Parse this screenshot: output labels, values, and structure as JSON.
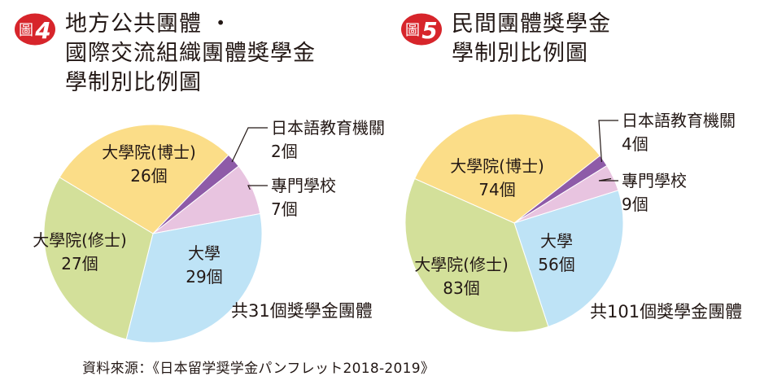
{
  "chart_data": [
    {
      "type": "pie",
      "badge_number": "4",
      "title_lines": [
        "地方公共團體 ・",
        "國際交流組織團體獎學金",
        "學制別比例圖"
      ],
      "total_label": "共31個獎學金團體",
      "slices": [
        {
          "label": "大學院(博士)",
          "count": "26個",
          "value": 26,
          "color": "#FBDD88"
        },
        {
          "label": "日本語教育機關",
          "count": "2個",
          "value": 2,
          "color": "#8E5BA8"
        },
        {
          "label": "專門學校",
          "count": "7個",
          "value": 7,
          "color": "#E8C4E0"
        },
        {
          "label": "大學",
          "count": "29個",
          "value": 29,
          "color": "#BEE3F6"
        },
        {
          "label": "大學院(修士)",
          "count": "27個",
          "value": 27,
          "color": "#D3E09A"
        }
      ]
    },
    {
      "type": "pie",
      "badge_number": "5",
      "title_lines": [
        "民間團體獎學金",
        "學制別比例圖"
      ],
      "total_label": "共101個獎學金團體",
      "slices": [
        {
          "label": "大學院(博士)",
          "count": "74個",
          "value": 74,
          "color": "#FBDD88"
        },
        {
          "label": "日本語教育機關",
          "count": "4個",
          "value": 4,
          "color": "#8E5BA8"
        },
        {
          "label": "專門學校",
          "count": "9個",
          "value": 9,
          "color": "#E8C4E0"
        },
        {
          "label": "大學",
          "count": "56個",
          "value": 56,
          "color": "#BEE3F6"
        },
        {
          "label": "大學院(修士)",
          "count": "83個",
          "value": 83,
          "color": "#D3E09A"
        }
      ]
    }
  ],
  "badge_prefix": "圖",
  "badge_color": "#D7252B",
  "source": "資料來源：《日本留学奨学金パンフレット2018-2019》"
}
